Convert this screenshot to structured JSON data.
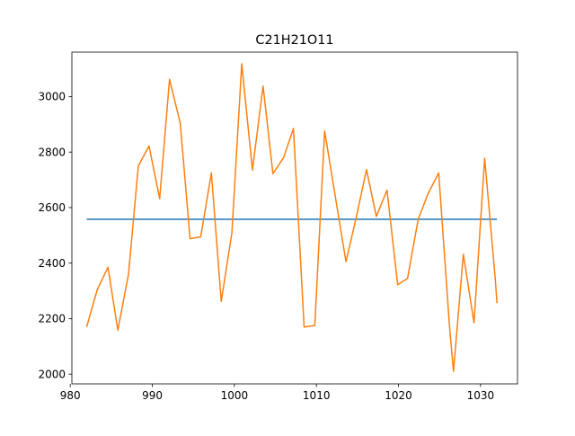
{
  "chart_data": {
    "type": "line",
    "title": "C21H21O11",
    "xlabel": "",
    "ylabel": "",
    "xlim": [
      980.2,
      1034.5
    ],
    "ylim": [
      1965,
      3160
    ],
    "xticks": [
      980,
      990,
      1000,
      1010,
      1020,
      1030
    ],
    "yticks": [
      2000,
      2200,
      2400,
      2600,
      2800,
      3000
    ],
    "grid": false,
    "legend": "none",
    "series": [
      {
        "color": "#1f77b4",
        "x": [
          982,
          1032
        ],
        "y": [
          2558,
          2558
        ]
      },
      {
        "color": "#ff7f0e",
        "x": [
          982.0,
          983.3,
          984.6,
          985.8,
          987.1,
          988.3,
          989.6,
          990.9,
          992.1,
          993.4,
          994.6,
          995.9,
          997.2,
          998.4,
          999.7,
          1000.9,
          1002.2,
          1003.5,
          1004.7,
          1006.0,
          1007.2,
          1008.5,
          1009.8,
          1011.0,
          1012.3,
          1013.6,
          1014.8,
          1016.1,
          1017.3,
          1018.6,
          1019.9,
          1021.1,
          1022.4,
          1023.6,
          1024.9,
          1026.2,
          1026.7,
          1027.9,
          1029.2,
          1030.5,
          1031.8,
          1032.0
        ],
        "y": [
          2170,
          2305,
          2385,
          2158,
          2360,
          2750,
          2822,
          2632,
          3062,
          2905,
          2488,
          2495,
          2725,
          2262,
          2510,
          3118,
          2735,
          3038,
          2722,
          2780,
          2885,
          2170,
          2175,
          2876,
          2640,
          2405,
          2558,
          2737,
          2568,
          2663,
          2322,
          2345,
          2558,
          2650,
          2725,
          2178,
          2010,
          2432,
          2185,
          2778,
          2340,
          2256
        ]
      }
    ]
  }
}
